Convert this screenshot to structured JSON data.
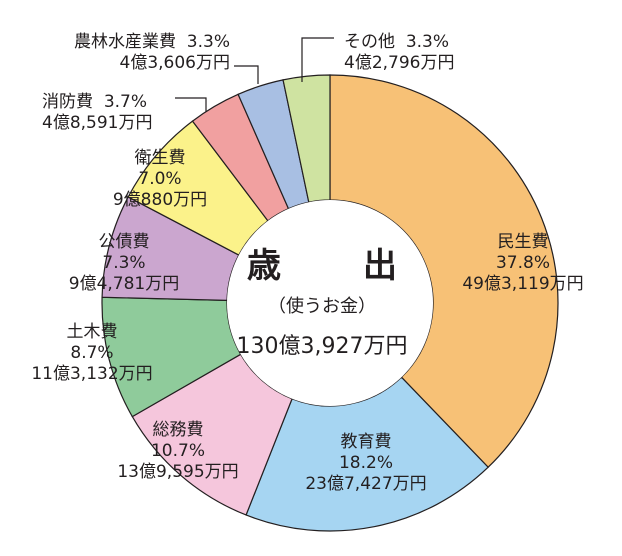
{
  "chart_data": {
    "type": "pie",
    "title": "歳　出",
    "subtitle": "（使うお金）",
    "total": "130億3,927万円",
    "slices": [
      {
        "name": "民生費",
        "percent_label": "37.8%",
        "amount": "49億3,119万円",
        "value": 37.8,
        "color": "#f7c176"
      },
      {
        "name": "教育費",
        "percent_label": "18.2%",
        "amount": "23億7,427万円",
        "value": 18.2,
        "color": "#a6d5f2"
      },
      {
        "name": "総務費",
        "percent_label": "10.7%",
        "amount": "13億9,595万円",
        "value": 10.7,
        "color": "#f5c6dc"
      },
      {
        "name": "土木費",
        "percent_label": "8.7%",
        "amount": "11億3,132万円",
        "value": 8.7,
        "color": "#8fcb9b"
      },
      {
        "name": "公債費",
        "percent_label": "7.3%",
        "amount": "9億4,781万円",
        "value": 7.3,
        "color": "#cba6cf"
      },
      {
        "name": "衛生費",
        "percent_label": "7.0%",
        "amount": "9億880万円",
        "value": 7.0,
        "color": "#fbf28a"
      },
      {
        "name": "消防費",
        "percent_label": "3.7%",
        "amount": "4億8,591万円",
        "value": 3.7,
        "color": "#f1a0a0"
      },
      {
        "name": "農林水産業費",
        "percent_label": "3.3%",
        "amount": "4億3,606万円",
        "value": 3.3,
        "color": "#a8bfe3"
      },
      {
        "name": "その他",
        "percent_label": "3.3%",
        "amount": "4億2,796万円",
        "value": 3.3,
        "color": "#cfe3a1"
      }
    ]
  }
}
